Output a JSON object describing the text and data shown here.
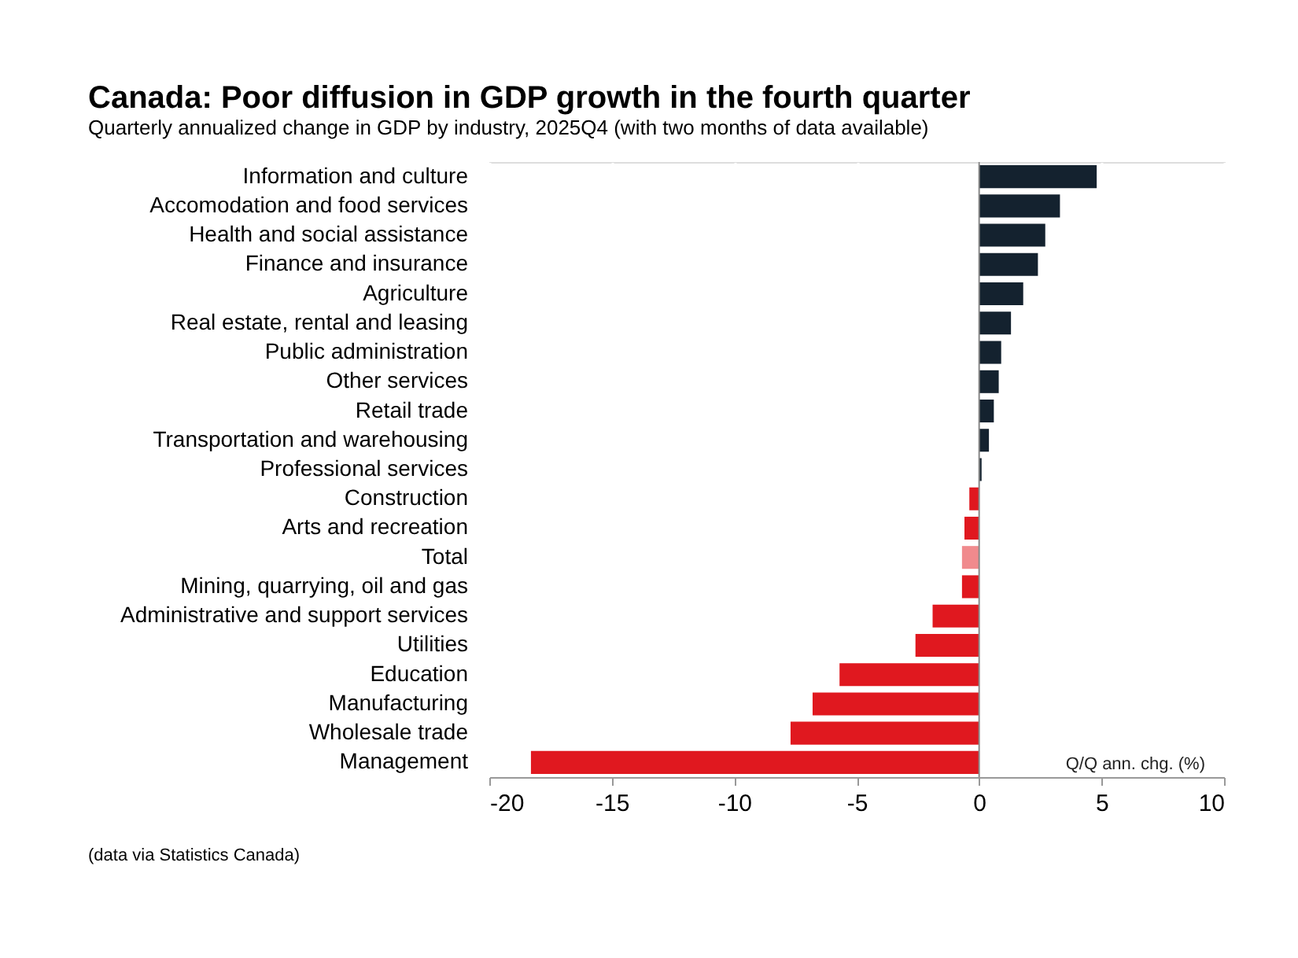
{
  "chart_data": {
    "type": "bar",
    "orientation": "horizontal",
    "title": "Canada: Poor diffusion in GDP growth in the fourth quarter",
    "subtitle": "Quarterly annualized change in GDP by industry, 2025Q4 (with two months of data available)",
    "xlabel": "Q/Q ann. chg. (%)",
    "categories": [
      "Information and culture",
      "Accomodation and food services",
      "Health and social assistance",
      "Finance and insurance",
      "Agriculture",
      "Real estate, rental and leasing",
      "Public administration",
      "Other services",
      "Retail trade",
      "Transportation and warehousing",
      "Professional services",
      "Construction",
      "Arts and recreation",
      "Total",
      "Mining, quarrying, oil and gas",
      "Administrative and support services",
      "Utilities",
      "Education",
      "Manufacturing",
      "Wholesale trade",
      "Management"
    ],
    "values": [
      4.8,
      3.3,
      2.7,
      2.4,
      1.8,
      1.3,
      0.9,
      0.8,
      0.6,
      0.4,
      0.1,
      -0.4,
      -0.6,
      -0.7,
      -0.7,
      -1.9,
      -2.6,
      -5.7,
      -6.8,
      -7.7,
      -18.3
    ],
    "colors": [
      "#14222f",
      "#14222f",
      "#14222f",
      "#14222f",
      "#14222f",
      "#14222f",
      "#14222f",
      "#14222f",
      "#14222f",
      "#14222f",
      "#14222f",
      "#e0181f",
      "#e0181f",
      "#f08a8d",
      "#e0181f",
      "#e0181f",
      "#e0181f",
      "#e0181f",
      "#e0181f",
      "#e0181f",
      "#e0181f"
    ],
    "xlim": [
      -20,
      10
    ],
    "xticks": [
      -20,
      -15,
      -10,
      -5,
      0,
      5,
      10
    ],
    "grid": "x",
    "ref_lines": [
      {
        "axis": "x",
        "value": 0,
        "color": "#888888"
      }
    ],
    "annotations": [
      "(data via Statistics Canada)"
    ]
  }
}
